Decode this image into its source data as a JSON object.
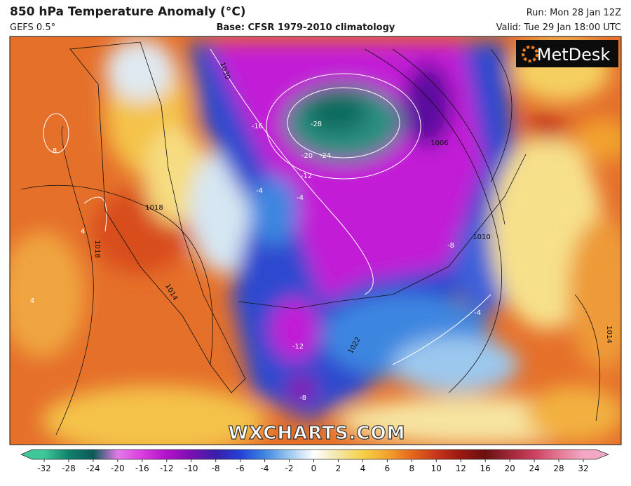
{
  "header": {
    "title": "850 hPa Temperature Anomaly (°C)",
    "model": "GEFS 0.5°",
    "base": "Base: CFSR 1979-2010 climatology",
    "run": "Run: Mon 28 Jan 12Z",
    "valid": "Valid: Tue 29 Jan 18:00 UTC"
  },
  "logo": "MetDesk",
  "watermark": "WXCHARTS.COM",
  "map": {
    "labels": [
      "-28",
      "-24",
      "-20",
      "-16",
      "-12",
      "-4",
      "-4",
      "-8",
      "-12",
      "-8",
      "-4",
      "8",
      "4",
      "4",
      "1018",
      "1018",
      "1014",
      "1010",
      "1022",
      "1030",
      "1006",
      "1014"
    ]
  },
  "colorbar": {
    "ticks": [
      -32,
      -28,
      -24,
      -20,
      -16,
      -12,
      -10,
      -8,
      -6,
      -4,
      -2,
      0,
      2,
      4,
      6,
      8,
      10,
      12,
      16,
      20,
      24,
      28,
      32
    ],
    "colors": [
      "#3fc79a",
      "#11806c",
      "#0d5a58",
      "#e27ae8",
      "#d93ddc",
      "#b012c8",
      "#7a10b0",
      "#3a1fa8",
      "#2440d8",
      "#3e86e0",
      "#9cc8ee",
      "#ffffff",
      "#f3e6a8",
      "#f7d046",
      "#f2a32e",
      "#e4681f",
      "#c6361a",
      "#981810",
      "#6a1010",
      "#9e2838",
      "#cc4060",
      "#e27894",
      "#f2a8c4"
    ]
  }
}
